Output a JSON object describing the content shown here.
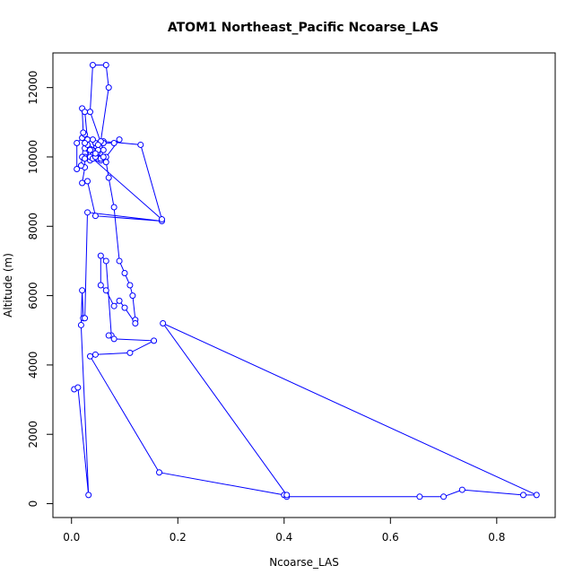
{
  "chart_data": {
    "type": "line",
    "title": "ATOM1 Northeast_Pacific Ncoarse_LAS",
    "xlabel": "Ncoarse_LAS",
    "ylabel": "Altitude (m)",
    "xlim": [
      -0.035,
      0.91
    ],
    "ylim": [
      -400,
      13000
    ],
    "xticks": [
      0.0,
      0.2,
      0.4,
      0.6,
      0.8
    ],
    "xtick_labels": [
      "0.0",
      "0.2",
      "0.4",
      "0.6",
      "0.8"
    ],
    "yticks": [
      0,
      2000,
      4000,
      6000,
      8000,
      10000,
      12000
    ],
    "ytick_labels": [
      "0",
      "2000",
      "4000",
      "6000",
      "8000",
      "10000",
      "12000"
    ],
    "grid": false,
    "marker": "open-circle",
    "series": [
      {
        "color": "#0000ff",
        "points": [
          [
            0.005,
            3300
          ],
          [
            0.012,
            3350
          ],
          [
            0.032,
            250
          ],
          [
            0.018,
            5150
          ],
          [
            0.02,
            6150
          ],
          [
            0.022,
            5350
          ],
          [
            0.025,
            5350
          ],
          [
            0.03,
            8400
          ],
          [
            0.17,
            8150
          ],
          [
            0.045,
            8300
          ],
          [
            0.03,
            9300
          ],
          [
            0.02,
            9250
          ],
          [
            0.025,
            9700
          ],
          [
            0.025,
            10000
          ],
          [
            0.035,
            9900
          ],
          [
            0.04,
            10050
          ],
          [
            0.055,
            9900
          ],
          [
            0.035,
            10000
          ],
          [
            0.025,
            10250
          ],
          [
            0.03,
            10350
          ],
          [
            0.05,
            10200
          ],
          [
            0.045,
            10400
          ],
          [
            0.06,
            10450
          ],
          [
            0.13,
            10350
          ],
          [
            0.17,
            8200
          ],
          [
            0.04,
            9950
          ],
          [
            0.065,
            10000
          ],
          [
            0.09,
            10500
          ],
          [
            0.08,
            10400
          ],
          [
            0.06,
            10400
          ],
          [
            0.05,
            9950
          ],
          [
            0.055,
            9950
          ],
          [
            0.06,
            10200
          ],
          [
            0.035,
            11300
          ],
          [
            0.04,
            12650
          ],
          [
            0.065,
            12650
          ],
          [
            0.07,
            12000
          ],
          [
            0.055,
            10450
          ],
          [
            0.03,
            10500
          ],
          [
            0.02,
            10550
          ],
          [
            0.01,
            10400
          ],
          [
            0.01,
            9650
          ],
          [
            0.018,
            9750
          ],
          [
            0.02,
            10000
          ],
          [
            0.025,
            10650
          ],
          [
            0.022,
            10700
          ],
          [
            0.02,
            11400
          ],
          [
            0.025,
            11300
          ],
          [
            0.03,
            10500
          ],
          [
            0.025,
            10400
          ],
          [
            0.035,
            10200
          ],
          [
            0.025,
            9950
          ],
          [
            0.045,
            10000
          ],
          [
            0.04,
            10500
          ],
          [
            0.05,
            10350
          ],
          [
            0.045,
            10100
          ],
          [
            0.06,
            10000
          ],
          [
            0.065,
            9850
          ],
          [
            0.07,
            9400
          ],
          [
            0.08,
            8550
          ],
          [
            0.09,
            7000
          ],
          [
            0.1,
            6650
          ],
          [
            0.11,
            6300
          ],
          [
            0.115,
            6000
          ],
          [
            0.12,
            5300
          ],
          [
            0.12,
            5200
          ],
          [
            0.1,
            5650
          ],
          [
            0.09,
            5850
          ],
          [
            0.08,
            5700
          ],
          [
            0.065,
            6150
          ],
          [
            0.055,
            6300
          ],
          [
            0.055,
            7150
          ],
          [
            0.065,
            7000
          ],
          [
            0.075,
            4850
          ],
          [
            0.07,
            4850
          ],
          [
            0.08,
            4750
          ],
          [
            0.155,
            4700
          ],
          [
            0.11,
            4350
          ],
          [
            0.045,
            4300
          ],
          [
            0.035,
            4250
          ],
          [
            0.165,
            900
          ],
          [
            0.4,
            250
          ],
          [
            0.405,
            200
          ],
          [
            0.655,
            200
          ],
          [
            0.7,
            200
          ],
          [
            0.735,
            400
          ],
          [
            0.85,
            250
          ],
          [
            0.875,
            250
          ],
          [
            0.172,
            5200
          ],
          [
            0.405,
            250
          ]
        ]
      }
    ]
  }
}
